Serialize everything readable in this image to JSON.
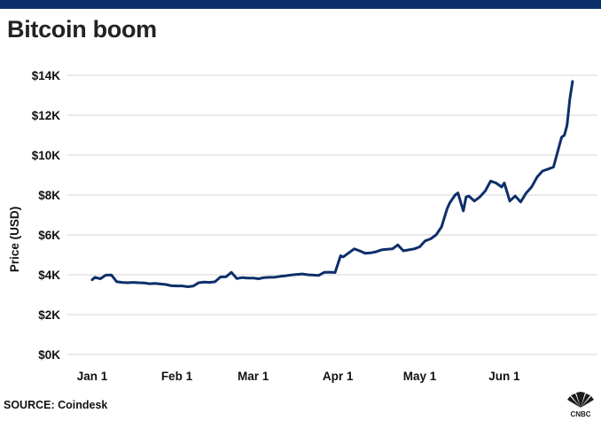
{
  "title": "Bitcoin boom",
  "source": "SOURCE: Coindesk",
  "logo_text": "CNBC",
  "colors": {
    "line": "#0d2f6a",
    "grid": "#d6d6d6",
    "topbar": "#0a2f6b"
  },
  "chart_data": {
    "type": "line",
    "title": "Bitcoin boom",
    "xlabel": "",
    "ylabel": "Price (USD)",
    "ylim": [
      0,
      14000
    ],
    "grid": true,
    "yticks": [
      {
        "value": 0,
        "label": "$0K"
      },
      {
        "value": 2000,
        "label": "$2K"
      },
      {
        "value": 4000,
        "label": "$4K"
      },
      {
        "value": 6000,
        "label": "$6K"
      },
      {
        "value": 8000,
        "label": "$8K"
      },
      {
        "value": 10000,
        "label": "$10K"
      },
      {
        "value": 12000,
        "label": "$12K"
      },
      {
        "value": 14000,
        "label": "$14K"
      }
    ],
    "xticks": [
      {
        "date": "Jan 1",
        "label": "Jan 1"
      },
      {
        "date": "Feb 1",
        "label": "Feb 1"
      },
      {
        "date": "Mar 1",
        "label": "Mar 1"
      },
      {
        "date": "Apr 1",
        "label": "Apr 1"
      },
      {
        "date": "May 1",
        "label": "May 1"
      },
      {
        "date": "Jun 1",
        "label": "Jun 1"
      }
    ],
    "series": [
      {
        "x": [
          "Jan 1",
          "Jan 2",
          "Jan 4",
          "Jan 6",
          "Jan 8",
          "Jan 10",
          "Jan 12",
          "Jan 14",
          "Jan 16",
          "Jan 18",
          "Jan 20",
          "Jan 22",
          "Jan 24",
          "Jan 26",
          "Jan 28",
          "Jan 30",
          "Feb 1",
          "Feb 3",
          "Feb 5",
          "Feb 7",
          "Feb 9",
          "Feb 11",
          "Feb 13",
          "Feb 15",
          "Feb 17",
          "Feb 19",
          "Feb 21",
          "Feb 23",
          "Feb 25",
          "Feb 27",
          "Mar 1",
          "Mar 3",
          "Mar 5",
          "Mar 7",
          "Mar 9",
          "Mar 11",
          "Mar 13",
          "Mar 15",
          "Mar 17",
          "Mar 19",
          "Mar 21",
          "Mar 23",
          "Mar 25",
          "Mar 27",
          "Mar 29",
          "Mar 31",
          "Apr 2",
          "Apr 3",
          "Apr 5",
          "Apr 7",
          "Apr 9",
          "Apr 11",
          "Apr 13",
          "Apr 15",
          "Apr 17",
          "Apr 19",
          "Apr 21",
          "Apr 23",
          "Apr 25",
          "Apr 27",
          "Apr 29",
          "May 1",
          "May 3",
          "May 5",
          "May 7",
          "May 9",
          "May 11",
          "May 12",
          "May 13",
          "May 14",
          "May 15",
          "May 17",
          "May 18",
          "May 19",
          "May 21",
          "May 23",
          "May 25",
          "May 27",
          "May 29",
          "May 31",
          "Jun 1",
          "Jun 3",
          "Jun 5",
          "Jun 6",
          "Jun 7",
          "Jun 9",
          "Jun 11",
          "Jun 13",
          "Jun 15",
          "Jun 17",
          "Jun 19",
          "Jun 21",
          "Jun 22",
          "Jun 23",
          "Jun 24",
          "Jun 25",
          "Jun 26"
        ],
        "values": [
          3750,
          3870,
          3800,
          3980,
          3990,
          3650,
          3620,
          3600,
          3620,
          3600,
          3590,
          3550,
          3570,
          3540,
          3510,
          3450,
          3440,
          3440,
          3400,
          3430,
          3600,
          3630,
          3620,
          3650,
          3890,
          3900,
          4120,
          3810,
          3860,
          3830,
          3830,
          3800,
          3860,
          3870,
          3880,
          3920,
          3950,
          3990,
          4020,
          4040,
          4000,
          3980,
          3970,
          4120,
          4130,
          4110,
          4950,
          4900,
          5100,
          5300,
          5200,
          5080,
          5100,
          5150,
          5250,
          5280,
          5300,
          5500,
          5200,
          5250,
          5300,
          5400,
          5700,
          5800,
          6000,
          6400,
          7300,
          7600,
          7800,
          8000,
          8100,
          7200,
          7900,
          7950,
          7700,
          7900,
          8200,
          8700,
          8600,
          8400,
          8600,
          7700,
          7950,
          7800,
          7650,
          8100,
          8400,
          8900,
          9200,
          9300,
          9400,
          10400,
          10900,
          11000,
          11500,
          12800,
          13700
        ]
      }
    ]
  }
}
